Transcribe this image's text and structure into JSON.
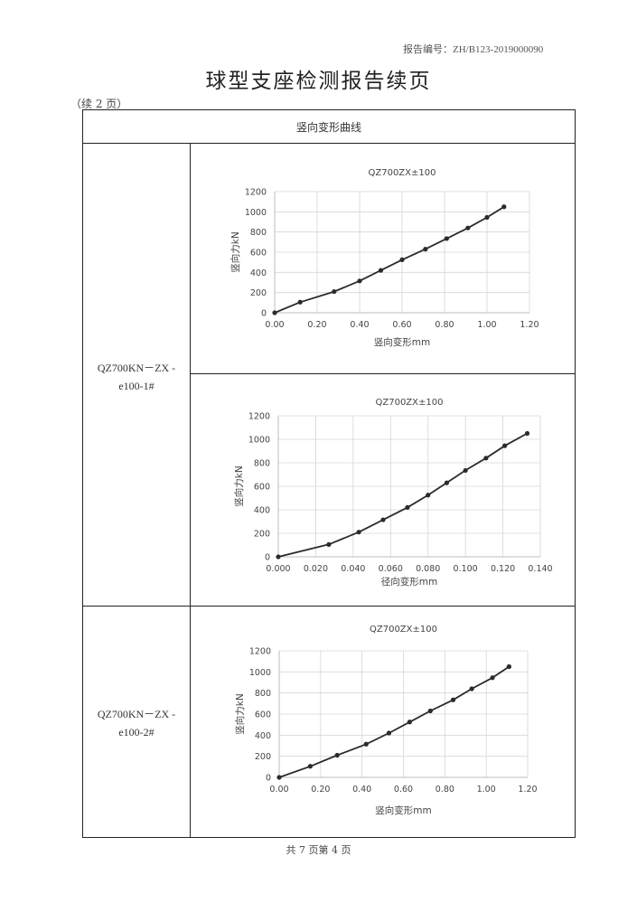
{
  "header": {
    "report_number": "报告编号：ZH/B123-2019000090",
    "title": "球型支座检测报告续页",
    "continued": "（续 2 页）"
  },
  "table": {
    "section_title": "竖向变形曲线",
    "samples": [
      {
        "label_line1": "QZ700KN－ZX -",
        "label_line2": "e100-1#"
      },
      {
        "label_line1": "QZ700KN－ZX -",
        "label_line2": "e100-2#"
      }
    ]
  },
  "chart_data": [
    {
      "type": "line",
      "title": "QZ700ZX±100",
      "xlabel": "竖向变形mm",
      "ylabel": "竖向力kN",
      "xlim": [
        0,
        1.2
      ],
      "ylim": [
        0,
        1200
      ],
      "xticks": [
        "0.00",
        "0.20",
        "0.40",
        "0.60",
        "0.80",
        "1.00",
        "1.20"
      ],
      "yticks": [
        "0",
        "200",
        "400",
        "600",
        "800",
        "1000",
        "1200"
      ],
      "grid": true,
      "color": "#2b2b2b",
      "x": [
        0.0,
        0.12,
        0.28,
        0.4,
        0.5,
        0.6,
        0.71,
        0.81,
        0.91,
        1.0,
        1.08
      ],
      "y": [
        0,
        105,
        210,
        315,
        420,
        525,
        630,
        735,
        840,
        945,
        1050
      ]
    },
    {
      "type": "line",
      "title": "QZ700ZX±100",
      "xlabel": "径向变形mm",
      "ylabel": "竖向力kN",
      "xlim": [
        0,
        0.14
      ],
      "ylim": [
        0,
        1200
      ],
      "xticks": [
        "0.000",
        "0.020",
        "0.040",
        "0.060",
        "0.080",
        "0.100",
        "0.120",
        "0.140"
      ],
      "yticks": [
        "0",
        "200",
        "400",
        "600",
        "800",
        "1000",
        "1200"
      ],
      "grid": true,
      "color": "#2b2b2b",
      "x": [
        0.0,
        0.027,
        0.043,
        0.056,
        0.069,
        0.08,
        0.09,
        0.1,
        0.111,
        0.121,
        0.133
      ],
      "y": [
        0,
        105,
        210,
        315,
        420,
        525,
        630,
        735,
        840,
        945,
        1050
      ]
    },
    {
      "type": "line",
      "title": "QZ700ZX±100",
      "xlabel": "竖向变形mm",
      "ylabel": "竖向力kN",
      "xlim": [
        0,
        1.2
      ],
      "ylim": [
        0,
        1200
      ],
      "xticks": [
        "0.00",
        "0.20",
        "0.40",
        "0.60",
        "0.80",
        "1.00",
        "1.20"
      ],
      "yticks": [
        "0",
        "200",
        "400",
        "600",
        "800",
        "1000",
        "1200"
      ],
      "grid": true,
      "color": "#2b2b2b",
      "x": [
        0.0,
        0.15,
        0.28,
        0.42,
        0.53,
        0.63,
        0.73,
        0.84,
        0.93,
        1.03,
        1.11
      ],
      "y": [
        0,
        105,
        210,
        315,
        420,
        525,
        630,
        735,
        840,
        945,
        1050
      ]
    }
  ],
  "footer": {
    "page_info": "共 7 页第 4 页"
  }
}
